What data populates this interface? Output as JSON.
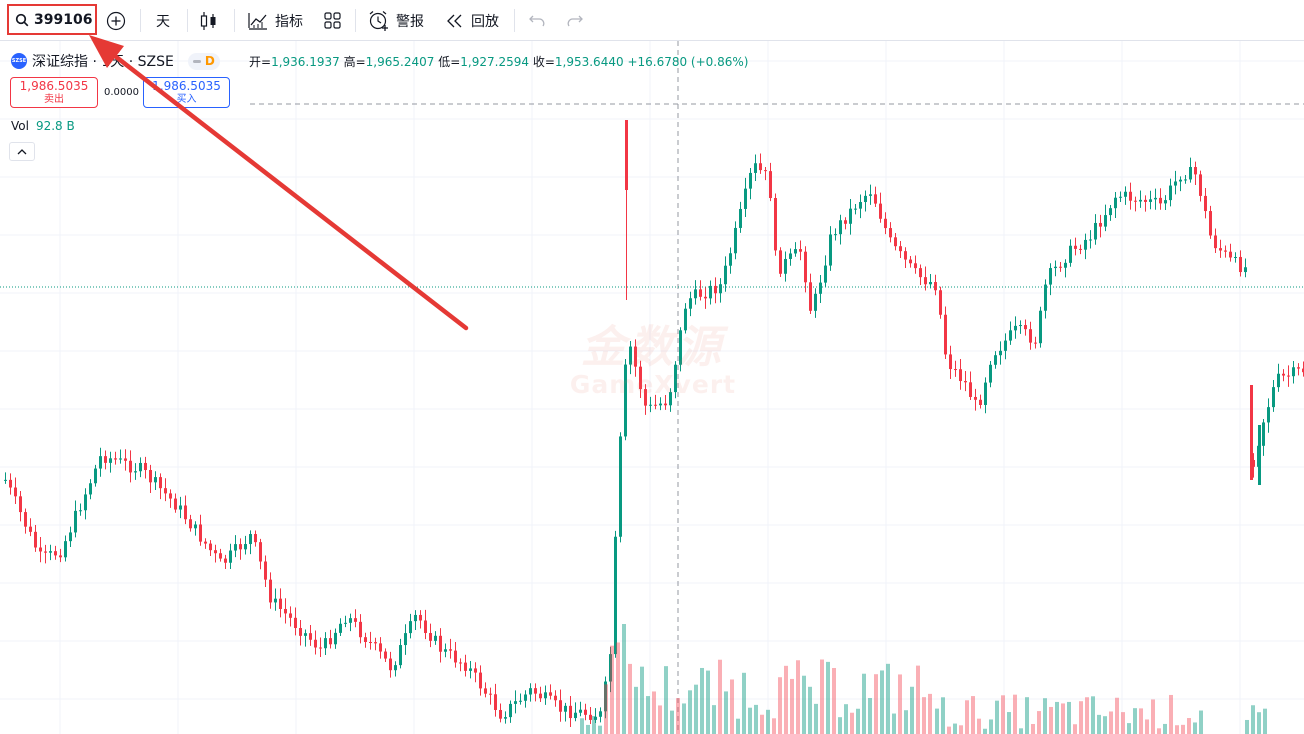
{
  "toolbar": {
    "symbol": "399106",
    "interval": "天",
    "indicators_label": "指标",
    "alert_label": "警报",
    "replay_label": "回放"
  },
  "legend": {
    "title": "深证综指 · 1天 · SZSE",
    "logo_text": "SZSE",
    "badge_letter": "D",
    "open_label": "开=",
    "open": "1,936.1937",
    "high_label": "高=",
    "high": "1,965.2407",
    "low_label": "低=",
    "low": "1,927.2594",
    "close_label": "收=",
    "close": "1,953.6440",
    "change": "+16.6780 (+0.86%)"
  },
  "trade": {
    "sell_price": "1,986.5035",
    "sell_label": "卖出",
    "spread": "0.0000",
    "buy_price": "1,986.5035",
    "buy_label": "买入"
  },
  "volume": {
    "label": "Vol",
    "value": "92.8 B"
  },
  "watermark": {
    "line1": "金数源",
    "line2": "GameXvert"
  },
  "colors": {
    "up": "#089981",
    "down": "#f23645",
    "annotation": "#e53935"
  },
  "icons": [
    "search-icon",
    "add-symbol-icon",
    "candles-icon",
    "indicators-icon",
    "layout-grid-icon",
    "alert-clock-icon",
    "replay-icon",
    "undo-icon",
    "redo-icon",
    "chevron-up-icon"
  ]
}
